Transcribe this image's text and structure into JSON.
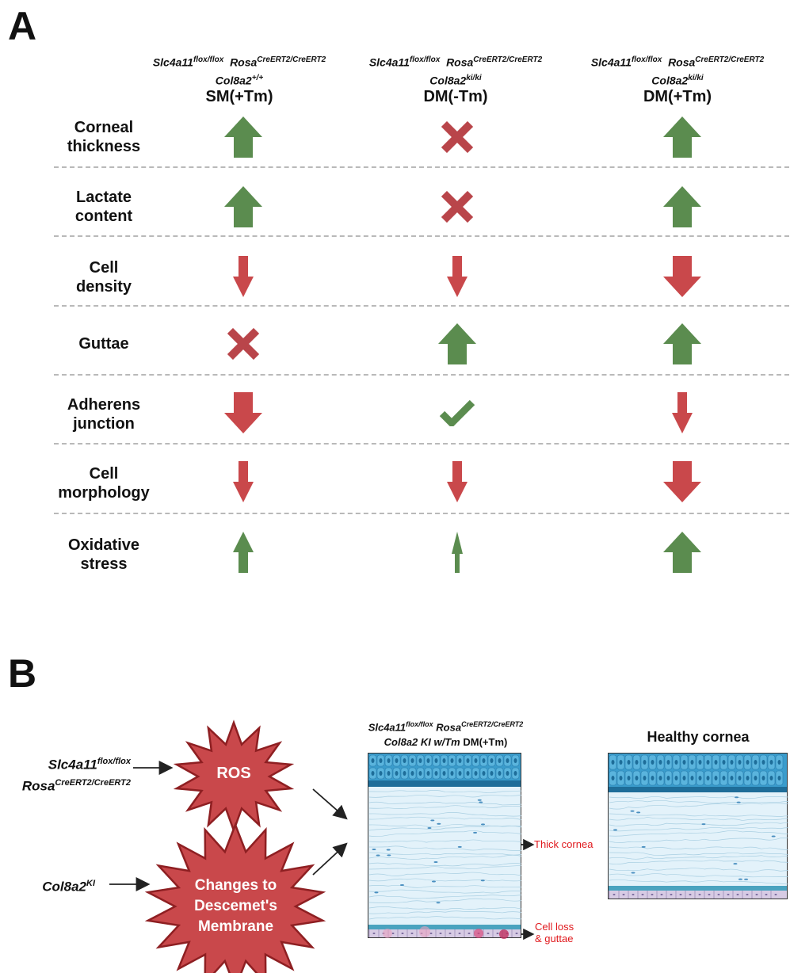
{
  "panel_a": {
    "letter": "A",
    "columns": [
      {
        "gene1": "Slc4a11",
        "gene1_sup": "flox/flox",
        "gene2": "Rosa",
        "gene2_sup": "CreERT2/CreERT2",
        "gene3": "Col8a2",
        "gene3_sup": "+/+",
        "group": "SM(+Tm)"
      },
      {
        "gene1": "Slc4a11",
        "gene1_sup": "flox/flox",
        "gene2": "Rosa",
        "gene2_sup": "CreERT2/CreERT2",
        "gene3": "Col8a2",
        "gene3_sup": "ki/ki",
        "group": "DM(-Tm)"
      },
      {
        "gene1": "Slc4a11",
        "gene1_sup": "flox/flox",
        "gene2": "Rosa",
        "gene2_sup": "CreERT2/CreERT2",
        "gene3": "Col8a2",
        "gene3_sup": "ki/ki",
        "group": "DM(+Tm)"
      }
    ],
    "rows": [
      {
        "line1": "Corneal",
        "line2": "thickness",
        "cells": [
          "up-large",
          "cross",
          "up-large"
        ]
      },
      {
        "line1": "Lactate",
        "line2": "content",
        "cells": [
          "up-large",
          "cross",
          "up-large"
        ]
      },
      {
        "line1": "Cell",
        "line2": "density",
        "cells": [
          "down-small",
          "down-small",
          "down-large"
        ]
      },
      {
        "line1": "Guttae",
        "line2": "",
        "cells": [
          "cross",
          "up-large",
          "up-large"
        ]
      },
      {
        "line1": "Adherens",
        "line2": "junction",
        "cells": [
          "down-large",
          "check",
          "down-small"
        ]
      },
      {
        "line1": "Cell",
        "line2": "morphology",
        "cells": [
          "down-small",
          "down-small",
          "down-large"
        ]
      },
      {
        "line1": "Oxidative",
        "line2": "stress",
        "cells": [
          "up-small",
          "up-thin",
          "up-large"
        ]
      }
    ],
    "colors": {
      "up": "#5b8c4f",
      "down": "#c9484b",
      "cross": "#b9454a",
      "check": "#5b8c4f",
      "divider": "#b9b9b9"
    }
  },
  "panel_b": {
    "letter": "B",
    "input1": {
      "gene1": "Slc4a11",
      "gene1_sup": "flox/flox",
      "gene2": "Rosa",
      "gene2_sup": "CreERT2/CreERT2"
    },
    "input2": {
      "gene": "Col8a2",
      "gene_sup": "KI"
    },
    "star1": {
      "text": "ROS",
      "color": "#c9484b",
      "stroke": "#8e1f22"
    },
    "star2": {
      "line1": "Changes to",
      "line2": "Descemet's",
      "line3": "Membrane",
      "color": "#c9484b",
      "stroke": "#8e1f22"
    },
    "diseased": {
      "gene1": "Slc4a11",
      "gene1_sup": "flox/flox",
      "gene2": "Rosa",
      "gene2_sup": "CreERT2/CreERT2",
      "gene3": "Col8a2 KI w/Tm",
      "group": "DM(+Tm)"
    },
    "healthy_title": "Healthy cornea",
    "label_thick": "Thick cornea",
    "label_loss_1": "Cell loss",
    "label_loss_2": "& guttae",
    "colors": {
      "epithelium": "#3a9ccc",
      "stroma": "#dff0f8",
      "label": "#e0191d"
    }
  }
}
